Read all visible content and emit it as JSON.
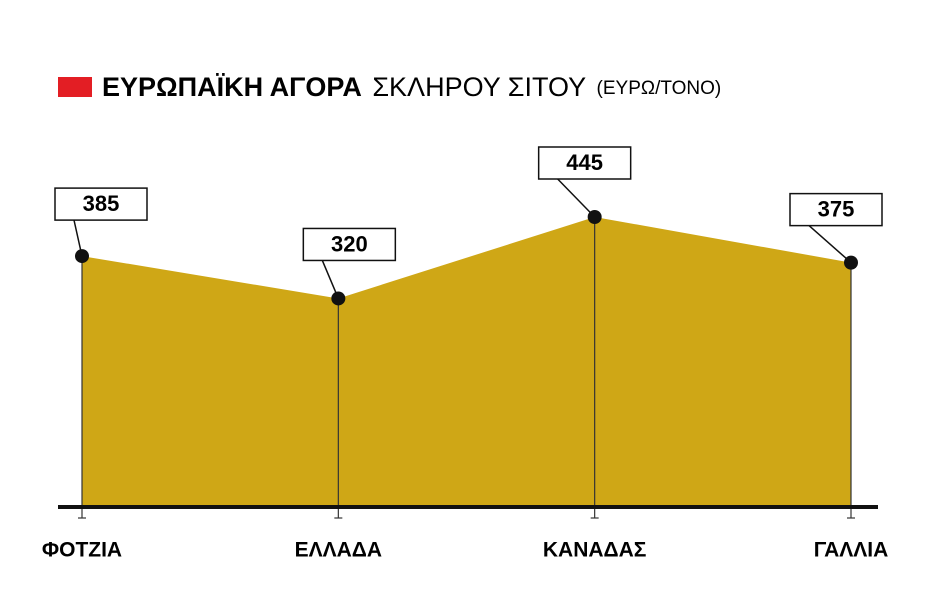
{
  "chart_data": {
    "type": "area",
    "title": "ΕΥΡΩΠΑΪΚΗ ΑΓΟΡΑ",
    "subtitle": "ΣΚΛΗΡΟΥ ΣΙΤΟΥ",
    "unit": "(ΕΥΡΩ/ΤΟΝΟ)",
    "categories": [
      "ΦΟΤΖΙΑ",
      "ΕΛΛΑΔΑ",
      "ΚΑΝΑΔΑΣ",
      "ΓΑΛΛΙΑ"
    ],
    "values": [
      385,
      320,
      445,
      375
    ],
    "color": "#cfa716",
    "title_marker_color": "#e31e24"
  }
}
